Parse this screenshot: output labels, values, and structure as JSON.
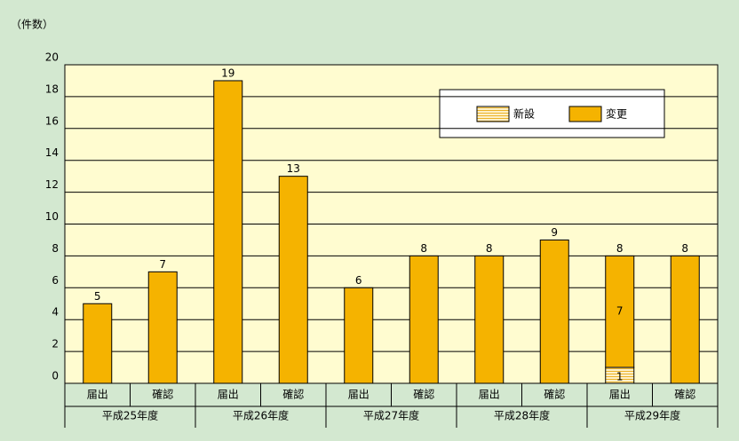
{
  "chart_data": {
    "type": "stacked_bar",
    "y_label": "（件数）",
    "categories": [
      "届出",
      "確認",
      "届出",
      "確認",
      "届出",
      "確認",
      "届出",
      "確認",
      "届出",
      "確認"
    ],
    "groups": [
      "平成25年度",
      "平成26年度",
      "平成27年度",
      "平成28年度",
      "平成29年度"
    ],
    "series": [
      {
        "name": "新設",
        "color": "#fbe3a6",
        "values": [
          0,
          0,
          0,
          0,
          0,
          0,
          0,
          0,
          1,
          0
        ]
      },
      {
        "name": "変更",
        "color": "#f5b300",
        "values": [
          5,
          7,
          19,
          13,
          6,
          8,
          8,
          9,
          7,
          8
        ]
      }
    ],
    "total_labels": [
      5,
      7,
      19,
      13,
      6,
      8,
      8,
      9,
      8,
      8
    ],
    "ylim": [
      0,
      20
    ],
    "yticks": [
      0,
      2,
      4,
      6,
      8,
      10,
      12,
      14,
      16,
      18,
      20
    ],
    "grid": true
  }
}
